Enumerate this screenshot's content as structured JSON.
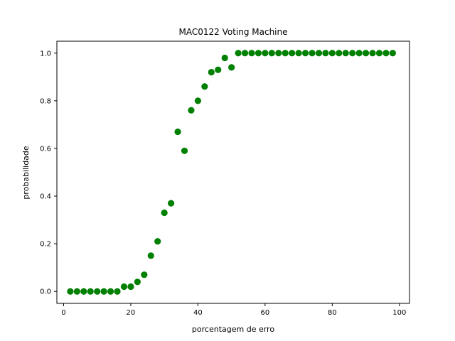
{
  "chart_data": {
    "type": "scatter",
    "title": "MAC0122 Voting Machine",
    "xlabel": "porcentagem de erro",
    "ylabel": "probabilidade",
    "xlim": [
      -2,
      103
    ],
    "ylim": [
      -0.05,
      1.05
    ],
    "xticks": [
      0,
      20,
      40,
      60,
      80,
      100
    ],
    "xtick_labels": [
      "0",
      "20",
      "40",
      "60",
      "80",
      "100"
    ],
    "yticks": [
      0.0,
      0.2,
      0.4,
      0.6,
      0.8,
      1.0
    ],
    "ytick_labels": [
      "0.0",
      "0.2",
      "0.4",
      "0.6",
      "0.8",
      "1.0"
    ],
    "grid": false,
    "marker_color": "#008000",
    "series": [
      {
        "x": [
          2,
          4,
          6,
          8,
          10,
          12,
          14,
          16,
          18,
          20,
          22,
          24,
          26,
          28,
          30,
          32,
          34,
          36,
          38,
          40,
          42,
          44,
          46,
          48,
          50,
          52,
          54,
          56,
          58,
          60,
          62,
          64,
          66,
          68,
          70,
          72,
          74,
          76,
          78,
          80,
          82,
          84,
          86,
          88,
          90,
          92,
          94,
          96,
          98
        ],
        "y": [
          0.0,
          0.0,
          0.0,
          0.0,
          0.0,
          0.0,
          0.0,
          0.0,
          0.02,
          0.02,
          0.04,
          0.07,
          0.15,
          0.21,
          0.33,
          0.37,
          0.67,
          0.59,
          0.76,
          0.8,
          0.86,
          0.92,
          0.93,
          0.98,
          0.94,
          1.0,
          1.0,
          1.0,
          1.0,
          1.0,
          1.0,
          1.0,
          1.0,
          1.0,
          1.0,
          1.0,
          1.0,
          1.0,
          1.0,
          1.0,
          1.0,
          1.0,
          1.0,
          1.0,
          1.0,
          1.0,
          1.0,
          1.0,
          1.0
        ]
      }
    ]
  }
}
